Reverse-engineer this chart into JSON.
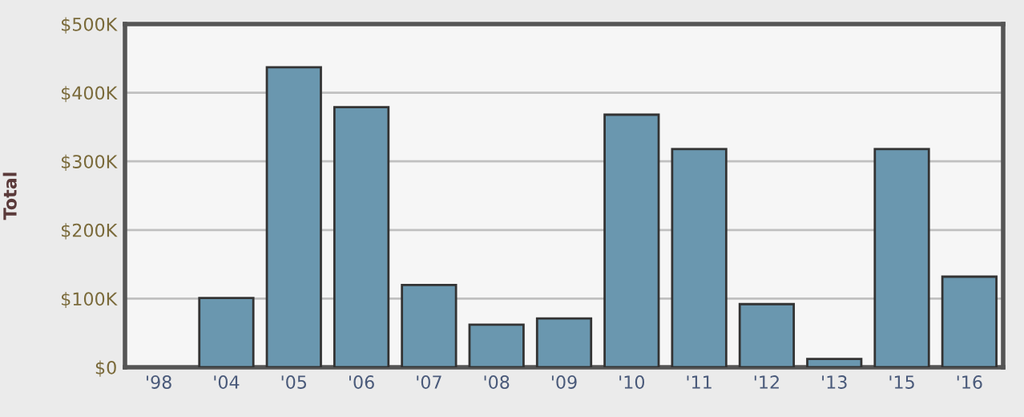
{
  "chart_data": {
    "type": "bar",
    "ylabel": "Total",
    "categories": [
      "'98",
      "'04",
      "'05",
      "'06",
      "'07",
      "'08",
      "'09",
      "'10",
      "'11",
      "'12",
      "'13",
      "'15",
      "'16"
    ],
    "values": [
      null,
      101000,
      437000,
      379000,
      120000,
      62000,
      71000,
      368000,
      318000,
      92000,
      12000,
      318000,
      132000
    ],
    "color": "#6a97af",
    "ylim": [
      0,
      500000
    ],
    "yticks": [
      {
        "value": 0,
        "label": "$0"
      },
      {
        "value": 100000,
        "label": "$100K"
      },
      {
        "value": 200000,
        "label": "$200K"
      },
      {
        "value": 300000,
        "label": "$300K"
      },
      {
        "value": 400000,
        "label": "$400K"
      },
      {
        "value": 500000,
        "label": "$500K"
      }
    ],
    "grid": "y",
    "legend": false
  }
}
